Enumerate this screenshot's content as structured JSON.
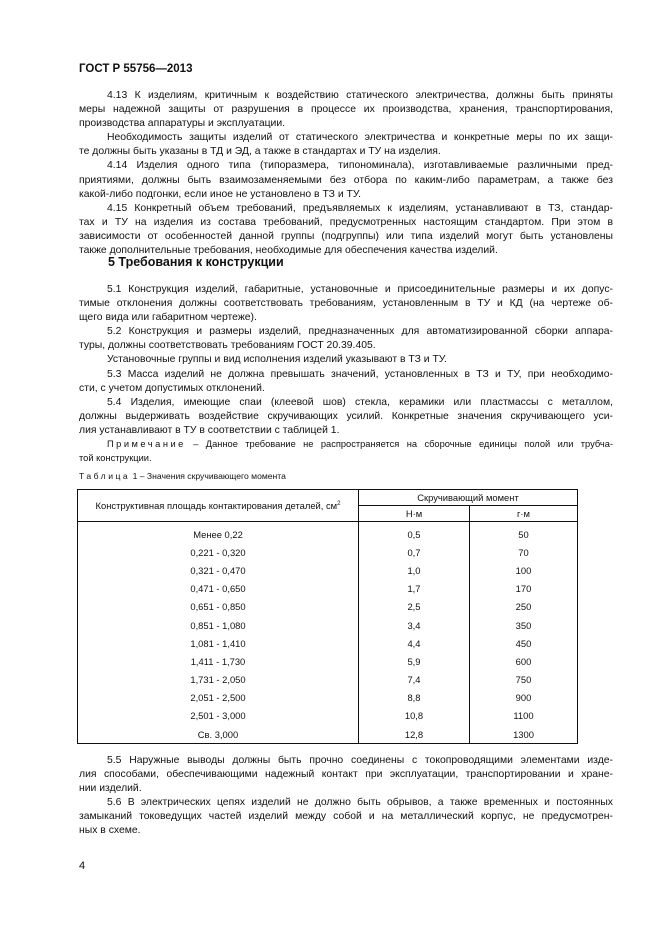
{
  "header": "ГОСТ Р 55756—2013",
  "section4": [
    [
      "4.13 К изделиям, критичным к воздействию статического электричества, должны быть приняты",
      "меры надежной защиты от разрушения в процессе их производства, хранения, транспортирования,",
      "производства аппаратуры и эксплуатации."
    ],
    [
      "Необходимость защиты изделий от статического электричества и конкретные меры по их защи-",
      "те должны быть указаны в ТД и ЭД, а также в стандартах и ТУ на изделия."
    ],
    [
      "4.14 Изделия одного типа (типоразмера, типономинала), изготавливаемые различными пред-",
      "приятиями, должны быть взаимозаменяемыми без отбора по каким-либо параметрам, а также без",
      "какой-либо подгонки, если иное не установлено в ТЗ и ТУ."
    ],
    [
      "4.15 Конкретный объем требований, предъявляемых к изделиям, устанавливают в ТЗ, стандар-",
      "тах и ТУ на изделия из состава требований, предусмотренных настоящим стандартом. При этом в",
      "зависимости от особенностей данной группы (подгруппы) или типа изделий могут быть установлены",
      "также дополнительные требования, необходимые для обеспечения качества изделий."
    ]
  ],
  "section5_title": "5 Требования к конструкции",
  "section5": [
    [
      "5.1 Конструкция изделий, габаритные, установочные и присоединительные размеры и их допус-",
      "тимые отклонения должны соответствовать требованиям, установленным в ТУ и КД (на чертеже об-",
      "щего вида или габаритном чертеже)."
    ],
    [
      "5.2 Конструкция и размеры изделий, предназначенных для автоматизированной сборки аппара-",
      "туры, должны соответствовать требованиям ГОСТ 20.39.405."
    ],
    [
      "Установочные группы и вид исполнения изделий указывают в ТЗ и ТУ."
    ],
    [
      "5.3 Масса изделий не должна превышать значений, установленных в ТЗ и ТУ, при необходимо-",
      "сти, с учетом допустимых отклонений."
    ],
    [
      "5.4 Изделия, имеющие спаи (клеевой шов) стекла, керамики или пластмассы с металлом,",
      "должны выдерживать воздействие скручивающих усилий. Конкретные значения скручивающего уси-",
      "лия устанавливают в ТУ в соответствии с таблицей 1."
    ]
  ],
  "note": {
    "label": "Примечание",
    "lines": [
      "– Данное требование не распространяется на сборочные единицы полой или трубча-",
      "той конструкции."
    ]
  },
  "table": {
    "caption_label": "Таблица",
    "caption": "1 – Значения скручивающего момента",
    "col1": "Конструктивная площадь контактирования деталей, см",
    "col1_sup": "2",
    "group": "Скручивающий момент",
    "col2": "Н·м",
    "col3": "г·м",
    "rows": [
      [
        "Менее 0,22",
        "0,5",
        "50"
      ],
      [
        "0,221 - 0,320",
        "0,7",
        "70"
      ],
      [
        "0,321 - 0,470",
        "1,0",
        "100"
      ],
      [
        "0,471 - 0,650",
        "1,7",
        "170"
      ],
      [
        "0,651 - 0,850",
        "2,5",
        "250"
      ],
      [
        "0,851 - 1,080",
        "3,4",
        "350"
      ],
      [
        "1,081 - 1,410",
        "4,4",
        "450"
      ],
      [
        "1,411 - 1,730",
        "5,9",
        "600"
      ],
      [
        "1,731 - 2,050",
        "7,4",
        "750"
      ],
      [
        "2,051 - 2,500",
        "8,8",
        "900"
      ],
      [
        "2,501 - 3,000",
        "10,8",
        "1100"
      ],
      [
        "Св. 3,000",
        "12,8",
        "1300"
      ]
    ]
  },
  "section5b": [
    [
      "5.5 Наружные выводы должны быть прочно соединены с токопроводящими элементами изде-",
      "лия способами, обеспечивающими надежный контакт при эксплуатации, транспортировании и хране-",
      "нии изделий."
    ],
    [
      "5.6 В электрических цепях изделий не должно быть обрывов, а также временных и постоянных",
      "замыканий токоведущих частей изделий между собой и на металлический корпус, не предусмотрен-",
      "ных в схеме."
    ]
  ],
  "page_number": "4"
}
